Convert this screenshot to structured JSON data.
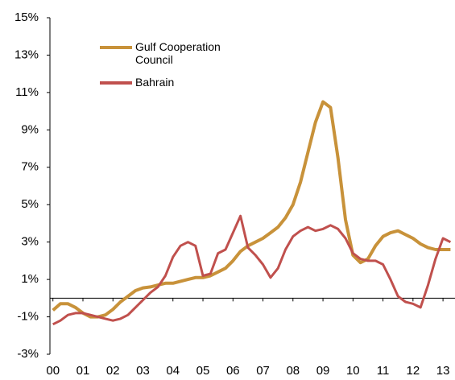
{
  "chart_data": {
    "type": "line",
    "x": [
      0,
      0.25,
      0.5,
      0.75,
      1,
      1.25,
      1.5,
      1.75,
      2,
      2.25,
      2.5,
      2.75,
      3,
      3.25,
      3.5,
      3.75,
      4,
      4.25,
      4.5,
      4.75,
      5,
      5.25,
      5.5,
      5.75,
      6,
      6.25,
      6.5,
      6.75,
      7,
      7.25,
      7.5,
      7.75,
      8,
      8.25,
      8.5,
      8.75,
      9,
      9.25,
      9.5,
      9.75,
      10,
      10.25,
      10.5,
      10.75,
      11,
      11.25,
      11.5,
      11.75,
      12,
      12.25,
      12.5,
      12.75,
      13,
      13.25
    ],
    "series": [
      {
        "name": "Gulf Cooperation Council",
        "color": "#c8923a",
        "values": [
          -0.65,
          -0.3,
          -0.3,
          -0.5,
          -0.8,
          -1.0,
          -1.0,
          -0.9,
          -0.6,
          -0.2,
          0.1,
          0.4,
          0.55,
          0.6,
          0.7,
          0.8,
          0.8,
          0.9,
          1.0,
          1.1,
          1.1,
          1.2,
          1.4,
          1.6,
          2.0,
          2.5,
          2.8,
          3.0,
          3.2,
          3.5,
          3.8,
          4.3,
          5.0,
          6.2,
          7.8,
          9.4,
          10.5,
          10.2,
          7.5,
          4.2,
          2.3,
          1.9,
          2.1,
          2.8,
          3.3,
          3.5,
          3.6,
          3.4,
          3.2,
          2.9,
          2.7,
          2.6,
          2.6,
          2.6
        ]
      },
      {
        "name": "Bahrain",
        "color": "#c0504d",
        "values": [
          -1.4,
          -1.2,
          -0.9,
          -0.8,
          -0.8,
          -0.9,
          -1.0,
          -1.1,
          -1.2,
          -1.1,
          -0.9,
          -0.5,
          -0.1,
          0.3,
          0.6,
          1.2,
          2.2,
          2.8,
          3.0,
          2.8,
          1.2,
          1.3,
          2.4,
          2.6,
          3.5,
          4.4,
          2.7,
          2.3,
          1.8,
          1.1,
          1.6,
          2.6,
          3.3,
          3.6,
          3.8,
          3.6,
          3.7,
          3.9,
          3.7,
          3.2,
          2.4,
          2.1,
          2.0,
          2.0,
          1.8,
          1.0,
          0.1,
          -0.2,
          -0.3,
          -0.5,
          0.7,
          2.1,
          3.2,
          3.0
        ]
      }
    ],
    "xlim": [
      -0.1,
      13.4
    ],
    "xticks": [
      {
        "value": 0,
        "label": "00"
      },
      {
        "value": 1,
        "label": "01"
      },
      {
        "value": 2,
        "label": "02"
      },
      {
        "value": 3,
        "label": "03"
      },
      {
        "value": 4,
        "label": "04"
      },
      {
        "value": 5,
        "label": "05"
      },
      {
        "value": 6,
        "label": "06"
      },
      {
        "value": 7,
        "label": "07"
      },
      {
        "value": 8,
        "label": "08"
      },
      {
        "value": 9,
        "label": "09"
      },
      {
        "value": 10,
        "label": "10"
      },
      {
        "value": 11,
        "label": "11"
      },
      {
        "value": 12,
        "label": "12"
      },
      {
        "value": 13,
        "label": "13"
      }
    ],
    "ylim": [
      -3,
      15
    ],
    "yticks": [
      {
        "value": -3,
        "label": "-3%"
      },
      {
        "value": -1,
        "label": "-1%"
      },
      {
        "value": 1,
        "label": "1%"
      },
      {
        "value": 3,
        "label": "3%"
      },
      {
        "value": 5,
        "label": "5%"
      },
      {
        "value": 7,
        "label": "7%"
      },
      {
        "value": 9,
        "label": "9%"
      },
      {
        "value": 11,
        "label": "11%"
      },
      {
        "value": 13,
        "label": "13%"
      },
      {
        "value": 15,
        "label": "15%"
      }
    ]
  }
}
